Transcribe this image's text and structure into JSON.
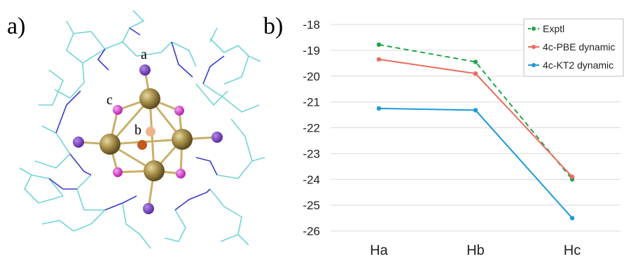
{
  "panels": [
    "a)",
    "b)"
  ],
  "atom_labels": [
    "a",
    "b",
    "c"
  ],
  "chart_data": {
    "type": "line",
    "categories": [
      "Ha",
      "Hb",
      "Hc"
    ],
    "series": [
      {
        "name": "Exptl",
        "color": "#1fa54a",
        "line_style": "dashed",
        "values": [
          -18.78,
          -19.45,
          -24.0
        ]
      },
      {
        "name": "4c-PBE dynamic",
        "color": "#ec6a5c",
        "line_style": "solid",
        "values": [
          -19.35,
          -19.9,
          -23.9
        ]
      },
      {
        "name": "4c-KT2 dynamic",
        "color": "#1e9ad6",
        "line_style": "solid",
        "values": [
          -21.25,
          -21.32,
          -25.5
        ]
      }
    ],
    "ylim": [
      -26,
      -18
    ],
    "yticks": [
      -26,
      -25,
      -24,
      -23,
      -22,
      -21,
      -20,
      -19,
      -18
    ],
    "grid": true,
    "legend": "upper right"
  }
}
